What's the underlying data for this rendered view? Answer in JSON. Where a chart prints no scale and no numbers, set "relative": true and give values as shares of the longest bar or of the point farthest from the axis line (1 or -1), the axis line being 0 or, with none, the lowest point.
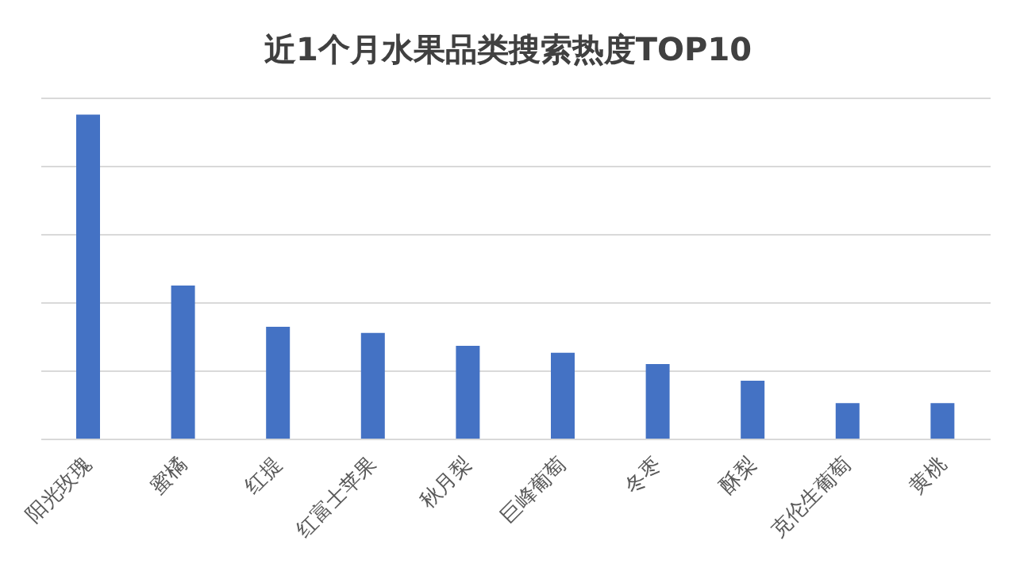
{
  "chart_data": {
    "type": "bar",
    "title": "近1个月水果品类搜索热度TOP10",
    "categories": [
      "阳光玫瑰",
      "蜜橘",
      "红提",
      "红富士苹果",
      "秋月梨",
      "巨峰葡萄",
      "冬枣",
      "酥梨",
      "克伦生葡萄",
      "黄桃"
    ],
    "values": [
      1,
      0.474,
      0.347,
      0.328,
      0.288,
      0.267,
      0.232,
      0.181,
      0.112,
      0.112
    ],
    "color": "#4472c4",
    "relative": true,
    "grid": "y"
  }
}
